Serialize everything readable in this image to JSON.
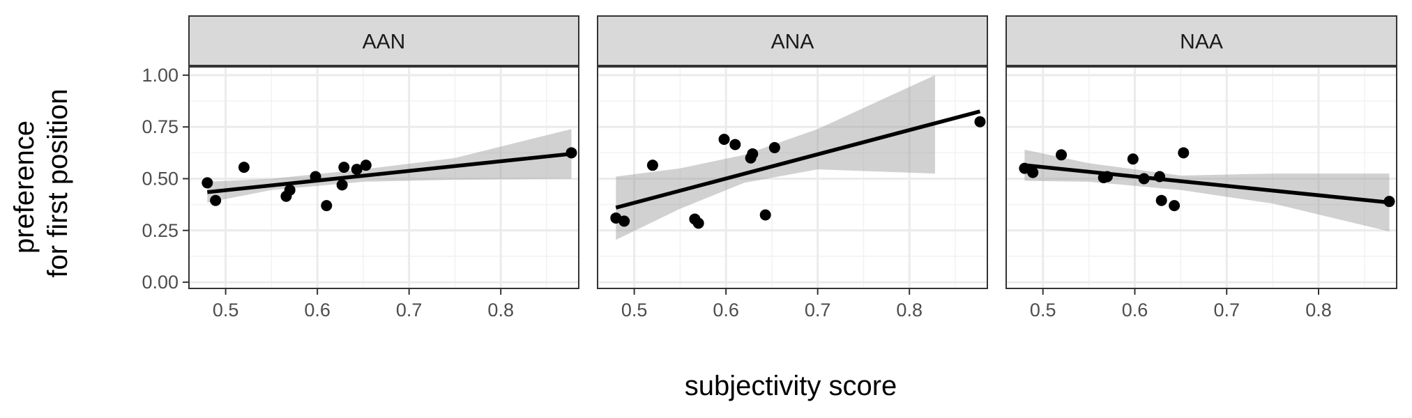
{
  "chart_data": {
    "type": "scatter",
    "facets": [
      "AAN",
      "ANA",
      "NAA"
    ],
    "xlabel": "subjectivity score",
    "ylabel": [
      "preference",
      "for first position"
    ],
    "xlim": [
      0.46,
      0.885
    ],
    "ylim": [
      -0.03,
      1.04
    ],
    "xticks": [
      0.5,
      0.6,
      0.7,
      0.8
    ],
    "xtick_labels": [
      "0.5",
      "0.6",
      "0.7",
      "0.8"
    ],
    "yticks": [
      0,
      0.25,
      0.5,
      0.75,
      1.0
    ],
    "ytick_labels": [
      "0.00",
      "0.25",
      "0.50",
      "0.75",
      "1.00"
    ],
    "grid": true,
    "colors": {
      "point": "#000000",
      "line": "#000000",
      "ribbon": "#999999",
      "strip": "#d9d9d9",
      "grid_major": "#ebebeb",
      "panel_border": "#333333"
    },
    "panels": [
      {
        "name": "AAN",
        "points": [
          {
            "x": 0.48,
            "y": 0.48
          },
          {
            "x": 0.489,
            "y": 0.395
          },
          {
            "x": 0.52,
            "y": 0.555
          },
          {
            "x": 0.566,
            "y": 0.415
          },
          {
            "x": 0.57,
            "y": 0.445
          },
          {
            "x": 0.598,
            "y": 0.51
          },
          {
            "x": 0.61,
            "y": 0.37
          },
          {
            "x": 0.627,
            "y": 0.47
          },
          {
            "x": 0.629,
            "y": 0.555
          },
          {
            "x": 0.643,
            "y": 0.545
          },
          {
            "x": 0.653,
            "y": 0.565
          },
          {
            "x": 0.877,
            "y": 0.625
          }
        ],
        "fit": {
          "x": [
            0.48,
            0.877
          ],
          "y": [
            0.435,
            0.62
          ]
        },
        "ribbon": {
          "x": [
            0.48,
            0.55,
            0.65,
            0.75,
            0.877
          ],
          "lower": [
            0.385,
            0.445,
            0.485,
            0.495,
            0.5
          ],
          "upper": [
            0.485,
            0.5,
            0.545,
            0.6,
            0.74
          ]
        }
      },
      {
        "name": "ANA",
        "points": [
          {
            "x": 0.48,
            "y": 0.31
          },
          {
            "x": 0.489,
            "y": 0.295
          },
          {
            "x": 0.52,
            "y": 0.565
          },
          {
            "x": 0.566,
            "y": 0.305
          },
          {
            "x": 0.57,
            "y": 0.285
          },
          {
            "x": 0.598,
            "y": 0.69
          },
          {
            "x": 0.61,
            "y": 0.665
          },
          {
            "x": 0.627,
            "y": 0.6
          },
          {
            "x": 0.629,
            "y": 0.62
          },
          {
            "x": 0.643,
            "y": 0.325
          },
          {
            "x": 0.653,
            "y": 0.65
          },
          {
            "x": 0.877,
            "y": 0.775
          }
        ],
        "fit": {
          "x": [
            0.48,
            0.877
          ],
          "y": [
            0.36,
            0.825
          ]
        },
        "ribbon": {
          "x": [
            0.48,
            0.55,
            0.62,
            0.7,
            0.828
          ],
          "lower": [
            0.205,
            0.355,
            0.48,
            0.545,
            0.525
          ],
          "upper": [
            0.51,
            0.55,
            0.615,
            0.74,
            1.0
          ]
        }
      },
      {
        "name": "NAA",
        "points": [
          {
            "x": 0.48,
            "y": 0.55
          },
          {
            "x": 0.489,
            "y": 0.53
          },
          {
            "x": 0.52,
            "y": 0.615
          },
          {
            "x": 0.566,
            "y": 0.505
          },
          {
            "x": 0.57,
            "y": 0.51
          },
          {
            "x": 0.598,
            "y": 0.595
          },
          {
            "x": 0.61,
            "y": 0.5
          },
          {
            "x": 0.627,
            "y": 0.51
          },
          {
            "x": 0.629,
            "y": 0.395
          },
          {
            "x": 0.643,
            "y": 0.37
          },
          {
            "x": 0.653,
            "y": 0.625
          },
          {
            "x": 0.877,
            "y": 0.39
          }
        ],
        "fit": {
          "x": [
            0.48,
            0.877
          ],
          "y": [
            0.565,
            0.385
          ]
        },
        "ribbon": {
          "x": [
            0.48,
            0.55,
            0.65,
            0.75,
            0.877
          ],
          "lower": [
            0.49,
            0.485,
            0.445,
            0.38,
            0.245
          ],
          "upper": [
            0.64,
            0.575,
            0.515,
            0.525,
            0.525
          ]
        }
      }
    ]
  }
}
